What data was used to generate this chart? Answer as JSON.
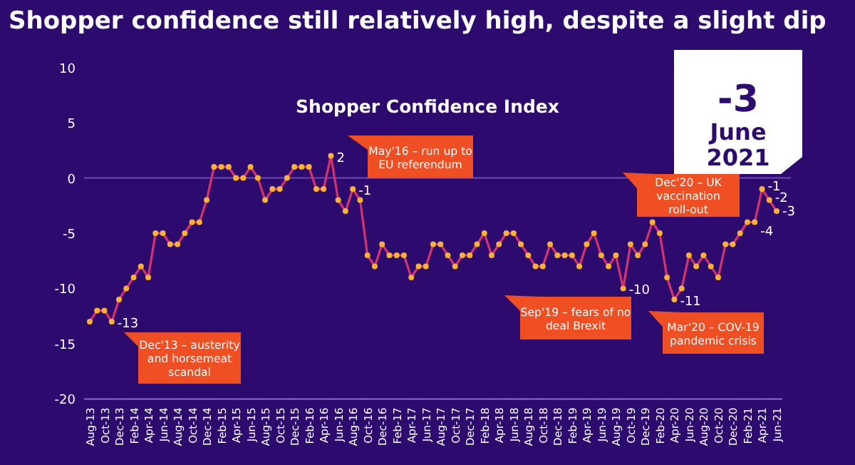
{
  "chart_data": {
    "type": "line",
    "title": "Shopper confidence still relatively high, despite a slight dip",
    "subtitle": "Shopper Confidence Index",
    "categories": [
      "Aug-13",
      null,
      "Oct-13",
      null,
      "Dec-13",
      null,
      "Feb-14",
      null,
      "Apr-14",
      null,
      "Jun-14",
      null,
      "Aug-14",
      null,
      "Oct-14",
      null,
      "Dec-14",
      null,
      "Feb-15",
      null,
      "Apr-15",
      null,
      "Jun-15",
      null,
      "Aug-15",
      null,
      "Oct-15",
      null,
      "Dec-15",
      null,
      "Feb-16",
      null,
      "Apr-16",
      null,
      "Jun-16",
      null,
      "Aug-16",
      null,
      "Oct-16",
      null,
      "Dec-16",
      null,
      "Feb-17",
      null,
      "Apr-17",
      null,
      "Jun-17",
      null,
      "Aug-17",
      null,
      "Oct-17",
      null,
      "Dec-17",
      null,
      "Feb-18",
      null,
      "Apr-18",
      null,
      "Jun-18",
      null,
      "Aug-18",
      null,
      "Oct-18",
      null,
      "Dec-18",
      null,
      "Feb-19",
      null,
      "Apr-19",
      null,
      "Jun-19",
      null,
      "Aug-19",
      null,
      "Oct-19",
      null,
      "Dec-19",
      null,
      "Feb-20",
      null,
      "Apr-20",
      null,
      "Jun-20",
      null,
      "Aug-20",
      null,
      "Oct-20",
      null,
      "Dec-20",
      null,
      "Feb-21",
      null,
      "Apr-21",
      null,
      "Jun-21"
    ],
    "series": [
      {
        "color": "#d6336c",
        "colors": [
          "#f9b233",
          "#f9b233",
          "#f9b233",
          "#f9b233",
          "#f9b233",
          "#f9b233",
          "#f9b233",
          "#f9b233",
          "#f9b233",
          "#f9b233",
          "#f9b233",
          "#f9b233",
          "#f9b233",
          "#f9b233",
          "#f9b233",
          "#f9b233",
          "#f9b233",
          "#f9b233",
          "#f9b233",
          "#f9b233",
          "#f9b233",
          "#f9b233",
          "#f9b233",
          "#f9b233",
          "#f9b233",
          "#f9b233",
          "#f9b233",
          "#f9b233",
          "#f9b233",
          "#f9b233",
          "#f9b233",
          "#f9b233",
          "#f9b233",
          "#f9b233",
          "#f9b233",
          "#f9b233",
          "#f9b233",
          "#f9b233",
          "#f9b233",
          "#f9b233",
          "#f9b233",
          "#f9b233",
          "#f9b233",
          "#f9b233",
          "#f9b233",
          "#f9b233",
          "#f9b233",
          "#f9b233",
          "#f9b233",
          "#f9b233",
          "#f9b233",
          "#f9b233",
          "#f9b233",
          "#f9b233",
          "#f9b233",
          "#f9b233",
          "#f9b233",
          "#f9b233",
          "#f9b233",
          "#f9b233",
          "#f9b233",
          "#f9b233",
          "#f9b233",
          "#f9b233",
          "#f9b233",
          "#f9b233",
          "#f9b233",
          "#f9b233",
          "#f9b233",
          "#f9b233",
          "#f9b233",
          "#f9b233",
          "#f9b233",
          "#f9b233",
          "#f9b233",
          "#f9b233",
          "#f9b233",
          "#f9b233",
          "#f9b233",
          "#f9b233",
          "#f9b233",
          "#f9b233",
          "#f9b233",
          "#f9b233",
          "#f9b233",
          "#f9b233",
          "#f9b233",
          "#f9b233",
          "#f9b233",
          "#f9b233",
          "#f9b233",
          "#f9b233",
          "#f9b233",
          "#f9b233",
          "#f9b233"
        ],
        "values": [
          -13,
          -12,
          -12,
          -13,
          -11,
          -10,
          -9,
          -8,
          -9,
          -5,
          -5,
          -6,
          -6,
          -5,
          -4,
          -4,
          -2,
          1,
          1,
          1,
          0,
          0,
          1,
          0,
          -2,
          -1,
          -1,
          0,
          1,
          1,
          1,
          -1,
          -1,
          2,
          -2,
          -3,
          -1,
          -2,
          -7,
          -8,
          -6,
          -7,
          -7,
          -7,
          -9,
          -8,
          -8,
          -6,
          -6,
          -7,
          -8,
          -7,
          -7,
          -6,
          -5,
          -7,
          -6,
          -5,
          -5,
          -6,
          -7,
          -8,
          -8,
          -6,
          -7,
          -7,
          -7,
          -8,
          -6,
          -5,
          -7,
          -8,
          -7,
          -10,
          -6,
          -7,
          -6,
          -4,
          -5,
          -9,
          -11,
          -10,
          -7,
          -8,
          -7,
          -8,
          -9,
          -6,
          -6,
          -5,
          -4,
          -4,
          -1,
          -2,
          -3
        ],
        "value_labels": [
          null,
          null,
          null,
          "-13",
          null,
          null,
          null,
          null,
          null,
          null,
          null,
          null,
          null,
          null,
          null,
          null,
          null,
          null,
          null,
          null,
          null,
          null,
          null,
          null,
          null,
          null,
          null,
          null,
          null,
          null,
          null,
          null,
          null,
          "2",
          null,
          null,
          "-1",
          null,
          null,
          null,
          null,
          null,
          null,
          null,
          null,
          null,
          null,
          null,
          null,
          null,
          null,
          null,
          null,
          null,
          null,
          null,
          null,
          null,
          null,
          null,
          null,
          null,
          null,
          null,
          null,
          null,
          null,
          null,
          null,
          null,
          null,
          null,
          null,
          "-10",
          null,
          null,
          null,
          null,
          null,
          null,
          "-11",
          null,
          null,
          null,
          null,
          null,
          null,
          null,
          null,
          null,
          null,
          "-4",
          "-1",
          "-2",
          "-3"
        ]
      }
    ],
    "ylim": [
      -20,
      10
    ],
    "yticks": [
      -20,
      -15,
      -10,
      -5,
      0,
      5,
      10
    ],
    "grid": false,
    "marker": "circle",
    "line_style": "solid",
    "ref_lines": [
      {
        "axis": "y",
        "value": 0,
        "color": "#6a4bb0"
      }
    ],
    "annotations": [
      "Dec'13 – austerity and horsemeat scandal",
      "May'16 – run up to EU referendum",
      "Sep'19 – fears of no deal Brexit",
      "Mar'20 – COV-19 pandemic crisis",
      "Dec'20 – UK vaccination roll-out",
      "-3",
      "June 2021"
    ]
  }
}
